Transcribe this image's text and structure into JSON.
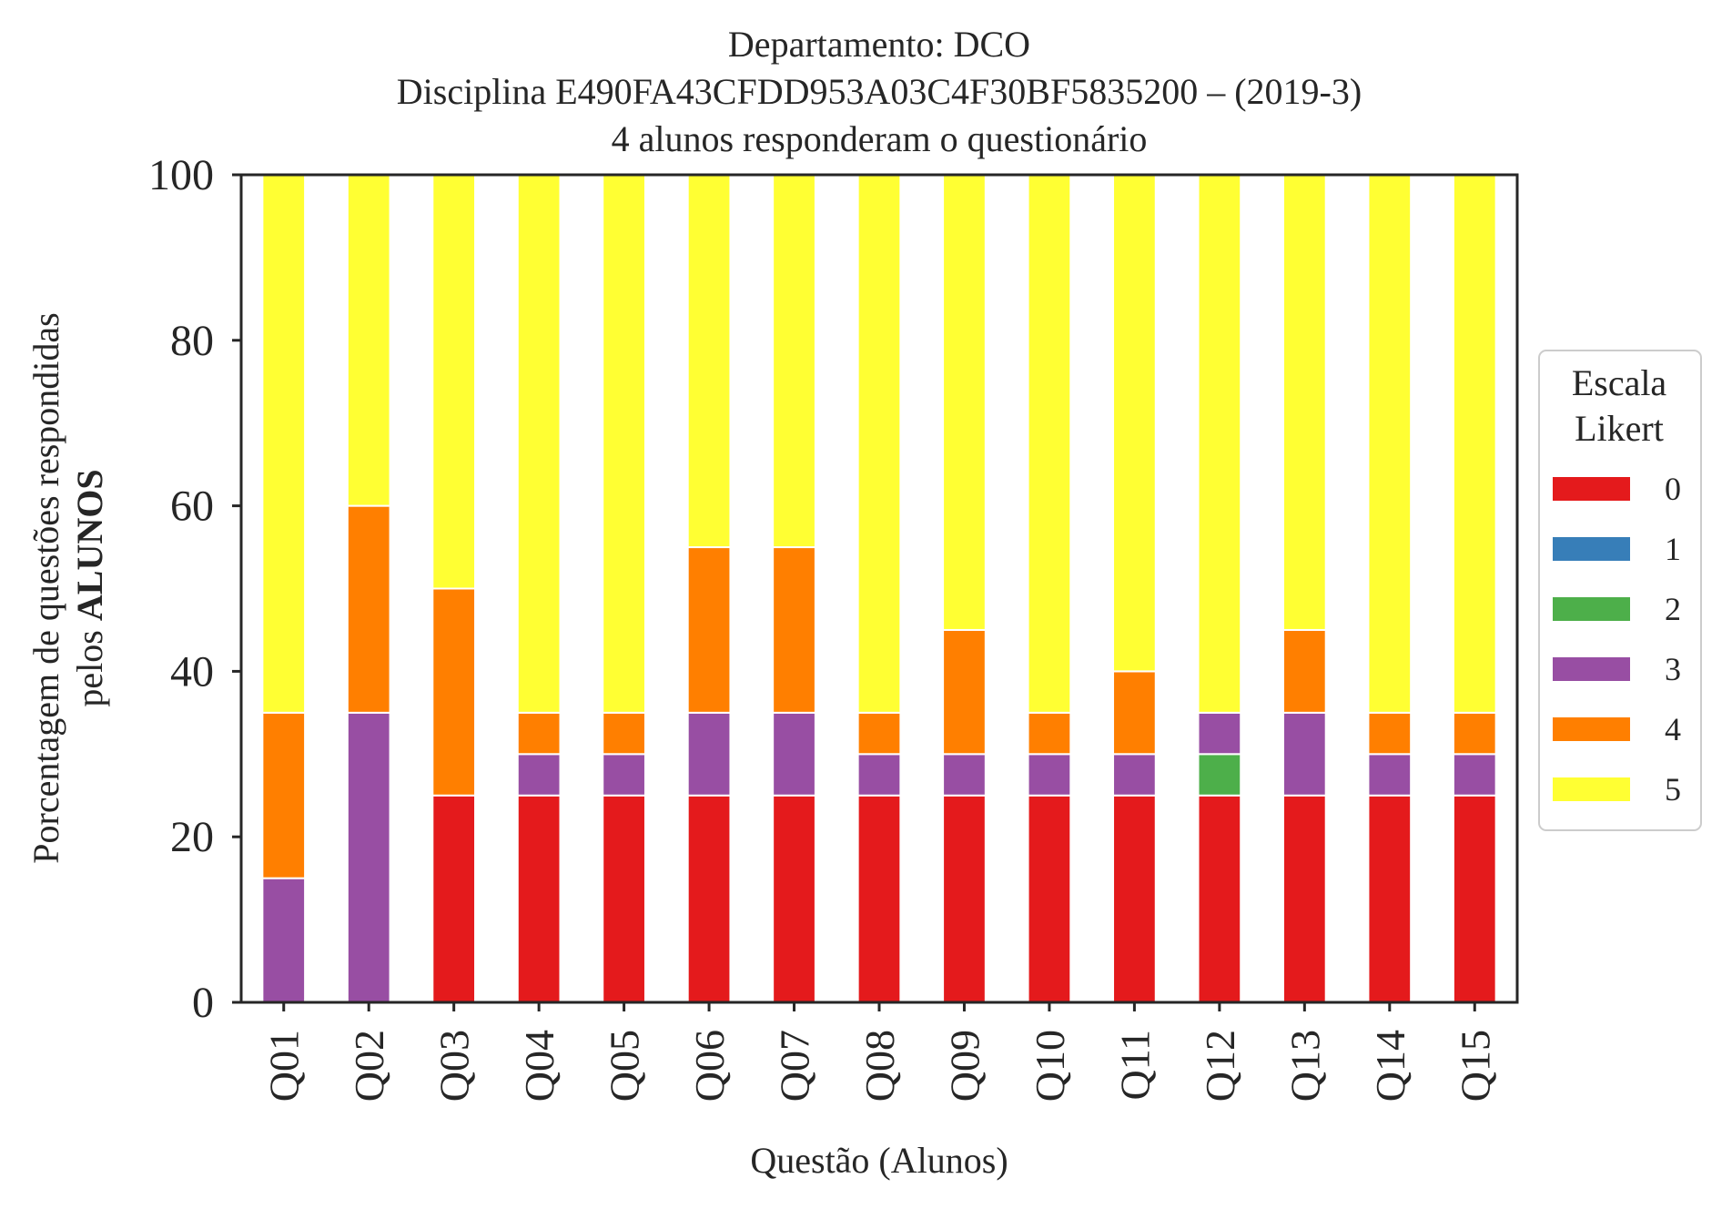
{
  "chart_data": {
    "type": "bar",
    "stacked": true,
    "title_lines": [
      "Departamento: DCO",
      "Disciplina E490FA43CFDD953A03C4F30BF5835200 – (2019-3)",
      "4 alunos responderam o questionário"
    ],
    "xlabel": "Questão (Alunos)",
    "ylabel_line1": "Porcentagem de questões respondidas",
    "ylabel_line2_prefix": "pelos ",
    "ylabel_line2_bold": "ALUNOS",
    "ylim": [
      0,
      100
    ],
    "yticks": [
      0,
      20,
      40,
      60,
      80,
      100
    ],
    "categories": [
      "Q01",
      "Q02",
      "Q03",
      "Q04",
      "Q05",
      "Q06",
      "Q07",
      "Q08",
      "Q09",
      "Q10",
      "Q11",
      "Q12",
      "Q13",
      "Q14",
      "Q15"
    ],
    "legend": {
      "title_line1": "Escala",
      "title_line2": "Likert",
      "placement": "center-right outside"
    },
    "series": [
      {
        "name": "0",
        "color": "#e41a1c",
        "values": [
          0,
          0,
          25,
          25,
          25,
          25,
          25,
          25,
          25,
          25,
          25,
          25,
          25,
          25,
          25
        ]
      },
      {
        "name": "1",
        "color": "#377eb8",
        "values": [
          0,
          0,
          0,
          0,
          0,
          0,
          0,
          0,
          0,
          0,
          0,
          0,
          0,
          0,
          0
        ]
      },
      {
        "name": "2",
        "color": "#4daf4a",
        "values": [
          0,
          0,
          0,
          0,
          0,
          0,
          0,
          0,
          0,
          0,
          0,
          5,
          0,
          0,
          0
        ]
      },
      {
        "name": "3",
        "color": "#984ea3",
        "values": [
          15,
          35,
          0,
          5,
          5,
          10,
          10,
          5,
          5,
          5,
          5,
          5,
          10,
          5,
          5
        ]
      },
      {
        "name": "4",
        "color": "#ff7f00",
        "values": [
          20,
          25,
          25,
          5,
          5,
          20,
          20,
          5,
          15,
          5,
          10,
          0,
          10,
          5,
          5
        ]
      },
      {
        "name": "5",
        "color": "#ffff33",
        "values": [
          65,
          40,
          50,
          65,
          65,
          45,
          45,
          65,
          55,
          65,
          60,
          65,
          55,
          65,
          65
        ]
      }
    ]
  }
}
